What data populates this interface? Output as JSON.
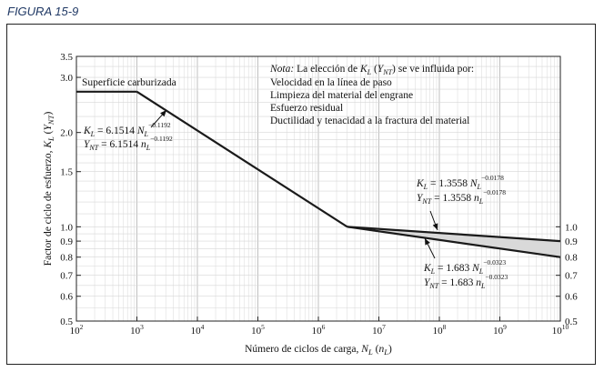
{
  "figure_title": "FIGURA 15-9",
  "note_lines": [
    "Velocidad en la línea de paso",
    "Limpieza del material del engrane",
    "Esfuerzo residual",
    "Ductilidad y tenacidad a la fractura del material"
  ],
  "chart_data": {
    "type": "line",
    "xlabel": "Número de ciclos de carga, N_L (n_L)",
    "ylabel": "Factor de ciclo de esfuerzo, K_L (Y_NT)",
    "x_scale": "log",
    "y_scale": "log",
    "xlim": [
      100,
      10000000000
    ],
    "ylim": [
      0.5,
      3.5
    ],
    "x_ticks": [
      "10^2",
      "10^3",
      "10^4",
      "10^5",
      "10^6",
      "10^7",
      "10^8",
      "10^9",
      "10^10"
    ],
    "y_ticks_left": [
      "0.5",
      "0.6",
      "0.7",
      "0.8",
      "0.9",
      "1.0",
      "1.5",
      "2.0",
      "3.0",
      "3.5"
    ],
    "y_ticks_right": [
      "0.5",
      "0.6",
      "0.7",
      "0.8",
      "0.9",
      "1.0"
    ],
    "grid": true,
    "series": [
      {
        "name": "Superficie carburizada",
        "points": [
          [
            100,
            2.7
          ],
          [
            1000,
            2.7
          ]
        ]
      },
      {
        "points": [
          [
            1000,
            2.7
          ],
          [
            3000000,
            1.0
          ]
        ]
      },
      {
        "points": [
          [
            3000000,
            1.0
          ],
          [
            10000000000,
            0.9
          ]
        ]
      },
      {
        "points": [
          [
            3000000,
            1.0
          ],
          [
            10000000000,
            0.8
          ]
        ]
      }
    ],
    "annotations": {
      "carburized": "Superficie carburizada",
      "eq1_K": "K_L = 6.1514 N_L^−0.1192",
      "eq1_Y": "Y_NT = 6.1514 n_L^−0.1192",
      "eq2_K": "K_L = 1.3558 N_L^−0.0178",
      "eq2_Y": "Y_NT = 1.3558 n_L^−0.0178",
      "eq3_K": "K_L = 1.683 N_L^−0.0323",
      "eq3_Y": "Y_NT = 1.683 n_L^−0.0323",
      "note_prefix": "Nota:",
      "note_body": "La elección de K_L (Y_NT) se ve influida por:"
    }
  }
}
